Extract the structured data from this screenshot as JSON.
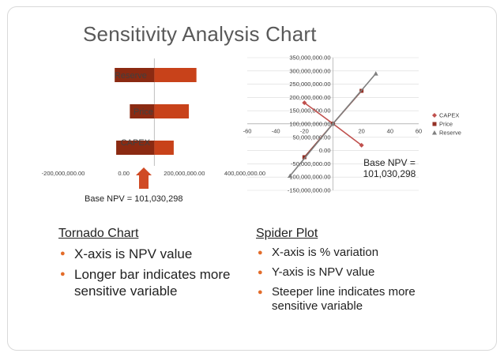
{
  "slide": {
    "title": "Sensitivity Analysis Chart"
  },
  "colors": {
    "bar_dark": "#8b2a12",
    "bar_light": "#c8421a",
    "arrow": "#d04a24",
    "capex": "#c0504d",
    "price": "#943126",
    "reserve": "#7f7f7f",
    "grid": "#d9d9d9",
    "axis": "#bfbfbf",
    "bullet": "#e36c2a"
  },
  "chart_data": [
    {
      "type": "bar",
      "subtype": "tornado",
      "categories": [
        "Reserve",
        "Price",
        "CAPEX"
      ],
      "base": 101030298,
      "low_values": [
        -30000000,
        20000000,
        -25000000
      ],
      "high_values": [
        240000000,
        215000000,
        165000000
      ],
      "xlim": [
        -200000000,
        400000000
      ],
      "xticks": [
        "-200,000,000.00",
        "0.00",
        "200,000,000.00",
        "400,000,000.00"
      ],
      "xtick_values": [
        -200000000,
        0,
        200000000,
        400000000
      ],
      "annotation": "Base NPV = 101,030,298"
    },
    {
      "type": "line",
      "subtype": "spider",
      "xlim": [
        -60,
        60
      ],
      "ylim": [
        -150000000,
        350000000
      ],
      "xticks": [
        "-60",
        "-40",
        "-20",
        "20",
        "40",
        "60"
      ],
      "xtick_values": [
        -60,
        -40,
        -20,
        20,
        40,
        60
      ],
      "yticks": [
        "350,000,000.00",
        "300,000,000.00",
        "250,000,000.00",
        "200,000,000.00",
        "150,000,000.00",
        "100,000,000.00",
        "50,000,000.00",
        "0.00",
        "-50,000,000.00",
        "-100,000,000.00",
        "-150,000,000.00"
      ],
      "ytick_values": [
        350000000,
        300000000,
        250000000,
        200000000,
        150000000,
        100000000,
        50000000,
        0,
        -50000000,
        -100000000,
        -150000000
      ],
      "series": [
        {
          "name": "CAPEX",
          "x": [
            -20,
            0,
            20
          ],
          "y": [
            180000000,
            101030298,
            20000000
          ]
        },
        {
          "name": "Price",
          "x": [
            -20,
            0,
            20
          ],
          "y": [
            -25000000,
            101030298,
            225000000
          ]
        },
        {
          "name": "Reserve",
          "x": [
            -30,
            0,
            30
          ],
          "y": [
            -95000000,
            101030298,
            290000000
          ]
        }
      ],
      "legend": [
        "CAPEX",
        "Price",
        "Reserve"
      ],
      "legend_position": "right",
      "annotation": "Base NPV = 101,030,298"
    }
  ],
  "tornado": {
    "heading": "Tornado Chart",
    "bullets": [
      "X-axis is NPV value",
      "Longer bar indicates more sensitive variable"
    ]
  },
  "spider": {
    "heading": "Spider Plot",
    "bullets": [
      "X-axis is % variation",
      "Y-axis is NPV value",
      "Steeper line indicates more sensitive variable"
    ]
  },
  "bullet_icon": "orange-dot"
}
